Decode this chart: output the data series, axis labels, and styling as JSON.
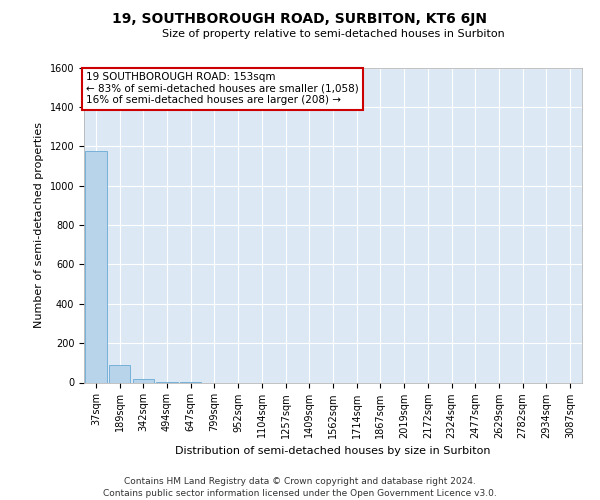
{
  "title": "19, SOUTHBOROUGH ROAD, SURBITON, KT6 6JN",
  "subtitle": "Size of property relative to semi-detached houses in Surbiton",
  "xlabel": "Distribution of semi-detached houses by size in Surbiton",
  "ylabel": "Number of semi-detached properties",
  "footnote1": "Contains HM Land Registry data © Crown copyright and database right 2024.",
  "footnote2": "Contains public sector information licensed under the Open Government Licence v3.0.",
  "categories": [
    "37sqm",
    "189sqm",
    "342sqm",
    "494sqm",
    "647sqm",
    "799sqm",
    "952sqm",
    "1104sqm",
    "1257sqm",
    "1409sqm",
    "1562sqm",
    "1714sqm",
    "1867sqm",
    "2019sqm",
    "2172sqm",
    "2324sqm",
    "2477sqm",
    "2629sqm",
    "2782sqm",
    "2934sqm",
    "3087sqm"
  ],
  "values": [
    1175,
    90,
    17,
    3,
    1,
    0,
    0,
    0,
    0,
    0,
    0,
    0,
    0,
    0,
    0,
    0,
    0,
    0,
    0,
    0,
    0
  ],
  "bar_color": "#b8d4ea",
  "bar_edge_color": "#6aaad4",
  "ylim": [
    0,
    1600
  ],
  "yticks": [
    0,
    200,
    400,
    600,
    800,
    1000,
    1200,
    1400,
    1600
  ],
  "annotation_line1": "19 SOUTHBOROUGH ROAD: 153sqm",
  "annotation_line2": "← 83% of semi-detached houses are smaller (1,058)",
  "annotation_line3": "16% of semi-detached houses are larger (208) →",
  "annotation_box_color": "#ffffff",
  "annotation_border_color": "#cc0000",
  "plot_bg_color": "#dce9f5",
  "grid_color": "#ffffff",
  "title_fontsize": 10,
  "subtitle_fontsize": 8,
  "ylabel_fontsize": 8,
  "xlabel_fontsize": 8,
  "tick_fontsize": 7,
  "annot_fontsize": 7.5,
  "footnote_fontsize": 6.5
}
